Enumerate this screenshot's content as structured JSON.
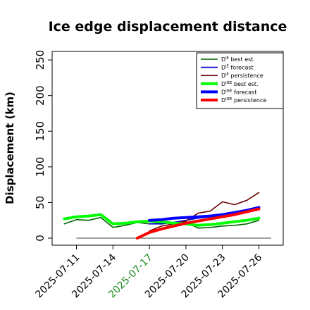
{
  "chart_data": {
    "type": "line",
    "title": "Ice edge displacement distance",
    "xlabel": "",
    "ylabel": "Displacement (km)",
    "ylim": [
      0,
      260
    ],
    "yticks": [
      "0",
      "50",
      "100",
      "150",
      "200",
      "250"
    ],
    "ytick_values": [
      0,
      50,
      100,
      150,
      200,
      250
    ],
    "xlim": [
      "2025-07-09",
      "2025-07-28"
    ],
    "xticks": [
      {
        "label": "2025-07-11",
        "date": "2025-07-11",
        "color": "#000000"
      },
      {
        "label": "2025-07-14",
        "date": "2025-07-14",
        "color": "#000000"
      },
      {
        "label": "2025-07-17",
        "date": "2025-07-17",
        "color": "#228b22"
      },
      {
        "label": "2025-07-20",
        "date": "2025-07-20",
        "color": "#000000"
      },
      {
        "label": "2025-07-23",
        "date": "2025-07-23",
        "color": "#000000"
      },
      {
        "label": "2025-07-26",
        "date": "2025-07-26",
        "color": "#000000"
      }
    ],
    "grid": false,
    "legend_position": "top-right",
    "baseline": {
      "y": 0,
      "color": "#444444",
      "x_start": "2025-07-11",
      "x_end": "2025-07-27"
    },
    "series": [
      {
        "name": "D^IE_ best est.",
        "legend_main": "D",
        "legend_sup": "IE",
        "legend_rest": " best est.",
        "color": "#006400",
        "thick": false,
        "x": [
          "2025-07-10",
          "2025-07-11",
          "2025-07-12",
          "2025-07-13",
          "2025-07-14",
          "2025-07-15",
          "2025-07-16",
          "2025-07-17",
          "2025-07-18",
          "2025-07-19",
          "2025-07-20",
          "2025-07-21",
          "2025-07-22",
          "2025-07-23",
          "2025-07-24",
          "2025-07-25",
          "2025-07-26"
        ],
        "y": [
          20,
          26,
          25,
          29,
          15,
          18,
          22,
          20,
          21,
          22,
          23,
          14,
          15,
          17,
          18,
          20,
          25
        ]
      },
      {
        "name": "D^IE_ forecast",
        "legend_main": "D",
        "legend_sup": "IE",
        "legend_rest": " forecast",
        "color": "#0000cd",
        "thick": false,
        "x": [
          "2025-07-17",
          "2025-07-18",
          "2025-07-19",
          "2025-07-20",
          "2025-07-21",
          "2025-07-22",
          "2025-07-23",
          "2025-07-24",
          "2025-07-25",
          "2025-07-26"
        ],
        "y": [
          20,
          20,
          22,
          25,
          28,
          30,
          32,
          35,
          38,
          42
        ]
      },
      {
        "name": "D^IE_ persistence",
        "legend_main": "D",
        "legend_sup": "IE",
        "legend_rest": " persistence",
        "color": "#6b0000",
        "thick": false,
        "x": [
          "2025-07-17",
          "2025-07-18",
          "2025-07-19",
          "2025-07-20",
          "2025-07-21",
          "2025-07-22",
          "2025-07-23",
          "2025-07-24",
          "2025-07-25",
          "2025-07-26"
        ],
        "y": [
          10,
          17,
          20,
          24,
          35,
          38,
          51,
          47,
          53,
          64
        ]
      },
      {
        "name": "D^IIEE_ best est.",
        "legend_main": "D",
        "legend_sup": "IIEE",
        "legend_rest": " best est.",
        "color": "#00ff00",
        "thick": true,
        "x": [
          "2025-07-10",
          "2025-07-11",
          "2025-07-12",
          "2025-07-13",
          "2025-07-14",
          "2025-07-15",
          "2025-07-16",
          "2025-07-17",
          "2025-07-18",
          "2025-07-19",
          "2025-07-20",
          "2025-07-21",
          "2025-07-22",
          "2025-07-23",
          "2025-07-24",
          "2025-07-25",
          "2025-07-26"
        ],
        "y": [
          27,
          30,
          31,
          33,
          20,
          21,
          23,
          24,
          23,
          21,
          20,
          18,
          19,
          21,
          23,
          25,
          28
        ]
      },
      {
        "name": "D^IIEE_ forecast",
        "legend_main": "D",
        "legend_sup": "IIEE",
        "legend_rest": " forecast",
        "color": "#0000ff",
        "thick": true,
        "x": [
          "2025-07-17",
          "2025-07-18",
          "2025-07-19",
          "2025-07-20",
          "2025-07-21",
          "2025-07-22",
          "2025-07-23",
          "2025-07-24",
          "2025-07-25",
          "2025-07-26"
        ],
        "y": [
          25,
          26,
          28,
          29,
          30,
          31,
          33,
          36,
          39,
          43
        ]
      },
      {
        "name": "D^IIEE_ persistence",
        "legend_main": "D",
        "legend_sup": "IIEE",
        "legend_rest": " persistence",
        "color": "#ff0000",
        "thick": true,
        "x": [
          "2025-07-16",
          "2025-07-17",
          "2025-07-18",
          "2025-07-19",
          "2025-07-20",
          "2025-07-21",
          "2025-07-22",
          "2025-07-23",
          "2025-07-24",
          "2025-07-25",
          "2025-07-26"
        ],
        "y": [
          0,
          8,
          13,
          17,
          21,
          24,
          27,
          30,
          33,
          37,
          41
        ]
      }
    ]
  }
}
